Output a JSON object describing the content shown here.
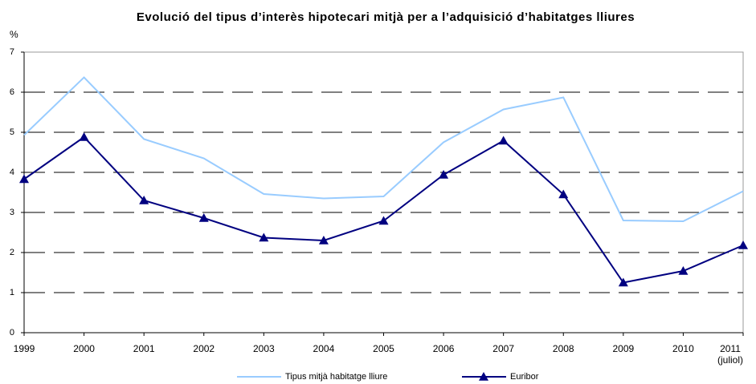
{
  "chart_data": {
    "type": "line",
    "title": "Evolució del tipus d’interès hipotecari mitjà per a l’adquisició d’habitatges lliures",
    "y_label": "%",
    "categories": [
      "1999",
      "2000",
      "2001",
      "2002",
      "2003",
      "2004",
      "2005",
      "2006",
      "2007",
      "2008",
      "2009",
      "2010",
      "2011\n(juliol)"
    ],
    "series": [
      {
        "name": "Tipus mitjà habitatge lliure",
        "color": "#99ccff",
        "marker": "none",
        "values": [
          4.93,
          6.37,
          4.83,
          4.35,
          3.46,
          3.35,
          3.4,
          4.75,
          5.57,
          5.87,
          2.8,
          2.78,
          3.53
        ]
      },
      {
        "name": "Euribor",
        "color": "#000080",
        "marker": "triangle",
        "values": [
          3.83,
          4.88,
          3.3,
          2.86,
          2.37,
          2.3,
          2.79,
          3.94,
          4.79,
          3.45,
          1.25,
          1.54,
          2.18
        ]
      }
    ],
    "ylim": [
      0,
      7
    ],
    "yticks": [
      0,
      1,
      2,
      3,
      4,
      5,
      6,
      7
    ],
    "grid": true,
    "legend": "bottom"
  }
}
